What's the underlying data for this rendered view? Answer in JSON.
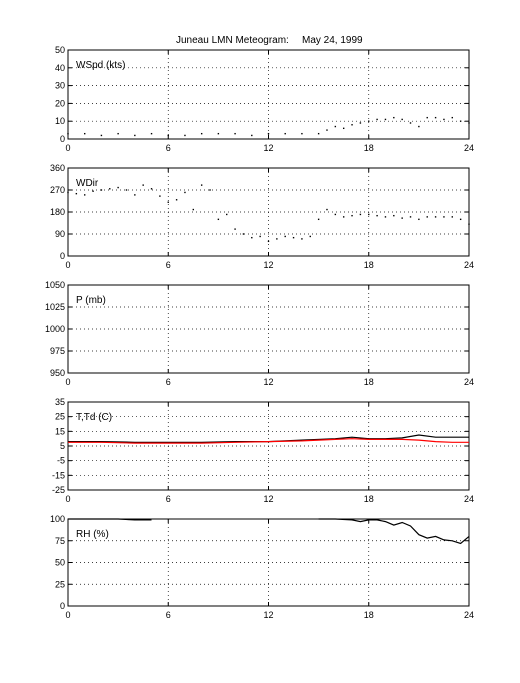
{
  "figure": {
    "title": "Juneau LMN Meteogram:",
    "date": "May 24, 1999"
  },
  "chart_data": [
    {
      "type": "scatter",
      "panel_label": "WSpd (kts)",
      "xlim": [
        0,
        24
      ],
      "ylim": [
        0,
        50
      ],
      "xticks": [
        "0",
        "6",
        "12",
        "18",
        "24"
      ],
      "yticks": [
        "0",
        "10",
        "20",
        "30",
        "40",
        "50"
      ],
      "grid": true,
      "series": [
        {
          "color": "#000000",
          "x": [
            0,
            1,
            2,
            3,
            4,
            5,
            6,
            7,
            8,
            9,
            10,
            11,
            12,
            13,
            14,
            15,
            15.5,
            16,
            16.5,
            17,
            17.5,
            18,
            18.5,
            19,
            19.5,
            20,
            20.5,
            21,
            21.5,
            22,
            22.5,
            23,
            23.5,
            24
          ],
          "y": [
            3,
            3,
            2,
            3,
            2,
            3,
            2,
            2,
            3,
            3,
            3,
            2,
            3,
            3,
            3,
            3,
            5,
            7,
            6,
            8,
            9,
            10,
            11,
            11,
            12,
            11,
            9,
            7,
            12,
            12,
            11,
            12,
            10,
            9
          ]
        }
      ]
    },
    {
      "type": "scatter",
      "panel_label": "WDir",
      "xlim": [
        0,
        24
      ],
      "ylim": [
        0,
        360
      ],
      "xticks": [
        "0",
        "6",
        "12",
        "18",
        "24"
      ],
      "yticks": [
        "0",
        "90",
        "180",
        "270",
        "360"
      ],
      "grid": true,
      "series": [
        {
          "color": "#000000",
          "x": [
            0,
            0.5,
            1,
            1.5,
            2,
            2.5,
            3,
            3.5,
            4,
            4.5,
            5,
            5.5,
            6,
            6.5,
            7,
            7.5,
            8,
            8.5,
            9,
            9.5,
            10,
            10.5,
            11,
            11.5,
            12,
            12.5,
            13,
            13.5,
            14,
            14.5,
            15,
            15.5,
            16,
            16.5,
            17,
            17.5,
            18,
            18.5,
            19,
            19.5,
            20,
            20.5,
            21,
            21.5,
            22,
            22.5,
            23,
            23.5,
            24
          ],
          "y": [
            260,
            255,
            250,
            265,
            270,
            275,
            280,
            270,
            250,
            290,
            275,
            245,
            220,
            230,
            260,
            190,
            290,
            270,
            150,
            170,
            110,
            90,
            75,
            80,
            60,
            70,
            80,
            75,
            70,
            80,
            150,
            190,
            170,
            160,
            165,
            170,
            170,
            165,
            160,
            165,
            155,
            160,
            150,
            160,
            160,
            160,
            160,
            150,
            130
          ]
        }
      ]
    },
    {
      "type": "line",
      "panel_label": "P (mb)",
      "xlim": [
        0,
        24
      ],
      "ylim": [
        950,
        1050
      ],
      "xticks": [
        "0",
        "6",
        "12",
        "18",
        "24"
      ],
      "yticks": [
        "950",
        "975",
        "1000",
        "1025",
        "1050"
      ],
      "grid": true,
      "series": []
    },
    {
      "type": "line",
      "panel_label": "T,Td (C)",
      "xlim": [
        0,
        24
      ],
      "ylim": [
        -25,
        35
      ],
      "xticks": [
        "0",
        "6",
        "12",
        "18",
        "24"
      ],
      "yticks": [
        "-25",
        "-15",
        "-5",
        "5",
        "15",
        "25",
        "35"
      ],
      "grid": true,
      "series": [
        {
          "color": "#000000",
          "x": [
            0,
            2,
            4,
            6,
            8,
            10,
            12,
            14,
            16,
            17,
            18,
            19,
            20,
            21,
            22,
            23,
            24
          ],
          "y": [
            8,
            8,
            7.5,
            7.5,
            7.5,
            8,
            8,
            9,
            10,
            11,
            10,
            10,
            10.5,
            12.5,
            11,
            11,
            11
          ]
        },
        {
          "color": "#ff0000",
          "x": [
            0,
            2,
            4,
            6,
            8,
            10,
            12,
            14,
            16,
            17,
            18,
            19,
            20,
            21,
            22,
            23,
            24
          ],
          "y": [
            7.5,
            7.5,
            7,
            7,
            7,
            7.5,
            8,
            8.5,
            9.5,
            10,
            9.5,
            9.5,
            9.5,
            9,
            8,
            7.5,
            7.5
          ]
        }
      ]
    },
    {
      "type": "line",
      "panel_label": "RH (%)",
      "xlim": [
        0,
        24
      ],
      "ylim": [
        0,
        100
      ],
      "xticks": [
        "0",
        "6",
        "12",
        "18",
        "24"
      ],
      "yticks": [
        "0",
        "25",
        "50",
        "75",
        "100"
      ],
      "grid": true,
      "series": [
        {
          "color": "#000000",
          "x": [
            0,
            1,
            2,
            3,
            4,
            5,
            15,
            16,
            17,
            17.5,
            18,
            18.5,
            19,
            19.5,
            20,
            20.5,
            21,
            21.5,
            22,
            22.5,
            23,
            23.5,
            24
          ],
          "y": [
            100,
            100,
            100,
            100,
            99,
            99,
            100,
            100,
            99,
            97,
            99,
            99,
            97,
            93,
            96,
            92,
            82,
            78,
            80,
            76,
            75,
            72,
            80
          ]
        }
      ]
    }
  ]
}
